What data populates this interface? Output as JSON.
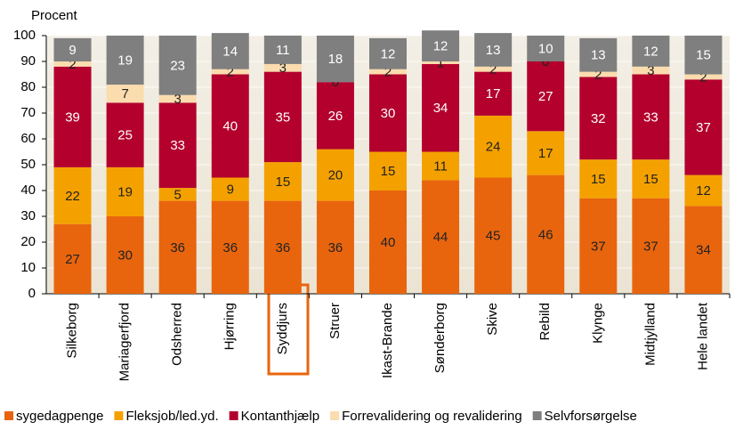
{
  "chart_data": {
    "type": "stacked_bar",
    "y_axis_label": "Procent",
    "categories": [
      "Silkeborg",
      "Mariagerfjord",
      "Odsherred",
      "Hjørring",
      "Syddjurs",
      "Struer",
      "Ikast-Brande",
      "Sønderborg",
      "Skive",
      "Rebild",
      "Klynge",
      "Midtjylland",
      "Hele landet"
    ],
    "series": [
      {
        "name": "sygedagpenge",
        "color": "#e8650e",
        "label_color": "#222222",
        "values": [
          27,
          30,
          36,
          36,
          36,
          36,
          40,
          44,
          45,
          46,
          37,
          37,
          34
        ]
      },
      {
        "name": "Fleksjob/led.yd.",
        "color": "#f4a100",
        "label_color": "#222222",
        "values": [
          22,
          19,
          5,
          9,
          15,
          20,
          15,
          11,
          24,
          17,
          15,
          15,
          12
        ]
      },
      {
        "name": "Kontanthjælp",
        "color": "#b3002d",
        "label_color": "#ffffff",
        "values": [
          39,
          25,
          33,
          40,
          35,
          26,
          30,
          34,
          17,
          27,
          32,
          33,
          37
        ]
      },
      {
        "name": "Forrevalidering og revalidering",
        "color": "#fbdcae",
        "label_color": "#222222",
        "values": [
          2,
          7,
          3,
          2,
          3,
          0,
          2,
          1,
          2,
          0,
          2,
          3,
          2
        ]
      },
      {
        "name": "Selvforsørgelse",
        "color": "#7f7f7f",
        "label_color": "#ffffff",
        "values": [
          9,
          19,
          23,
          14,
          11,
          18,
          12,
          12,
          13,
          10,
          13,
          12,
          15
        ]
      }
    ],
    "ylim": [
      0,
      100
    ],
    "yticks": [
      0,
      10,
      20,
      30,
      40,
      50,
      60,
      70,
      80,
      90,
      100
    ],
    "legend": "bottom"
  }
}
